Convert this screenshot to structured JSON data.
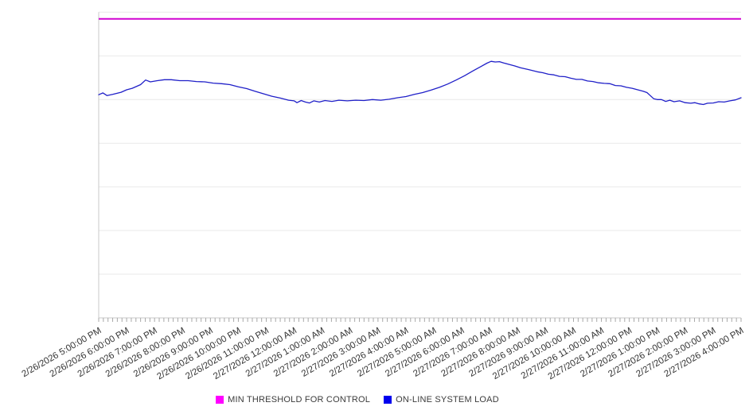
{
  "chart_data": {
    "type": "line",
    "title": "",
    "xlabel": "",
    "ylabel": "",
    "grid": "horizontal-on",
    "legend_position": "bottom-center",
    "y_axis": {
      "tick_labels_visible": false,
      "gridline_rows": 7,
      "range_normalized": [
        0,
        1
      ]
    },
    "x_axis": {
      "label_rotation_deg": -30,
      "minor_ticks_per_hour": 6,
      "tick_labels": [
        "2/26/2026 5:00:00 PM",
        "2/26/2026 6:00:00 PM",
        "2/26/2026 7:00:00 PM",
        "2/26/2026 8:00:00 PM",
        "2/26/2026 9:00:00 PM",
        "2/26/2026 10:00:00 PM",
        "2/26/2026 11:00:00 PM",
        "2/27/2026 12:00:00 AM",
        "2/27/2026 1:00:00 AM",
        "2/27/2026 2:00:00 AM",
        "2/27/2026 3:00:00 AM",
        "2/27/2026 4:00:00 AM",
        "2/27/2026 5:00:00 AM",
        "2/27/2026 6:00:00 AM",
        "2/27/2026 7:00:00 AM",
        "2/27/2026 8:00:00 AM",
        "2/27/2026 9:00:00 AM",
        "2/27/2026 10:00:00 AM",
        "2/27/2026 11:00:00 AM",
        "2/27/2026 12:00:00 PM",
        "2/27/2026 1:00:00 PM",
        "2/27/2026 2:00:00 PM",
        "2/27/2026 3:00:00 PM",
        "2/27/2026 4:00:00 PM"
      ]
    },
    "series": [
      {
        "name": "MIN THRESHOLD FOR CONTROL",
        "color": "#ff00ff",
        "line_color": "#d102d1",
        "kind": "constant",
        "value": 0.978
      },
      {
        "name": "ON-LINE SYSTEM LOAD",
        "color": "#0000ee",
        "line_color": "#1f1fc8",
        "kind": "points",
        "x_unit": "hours_after_first_tick",
        "y_unit": "fraction_of_plot_height",
        "points": [
          [
            0,
            0.73
          ],
          [
            0.15,
            0.736
          ],
          [
            0.3,
            0.727
          ],
          [
            0.5,
            0.731
          ],
          [
            0.8,
            0.738
          ],
          [
            1.0,
            0.746
          ],
          [
            1.2,
            0.751
          ],
          [
            1.5,
            0.763
          ],
          [
            1.68,
            0.778
          ],
          [
            1.85,
            0.772
          ],
          [
            2.1,
            0.776
          ],
          [
            2.35,
            0.779
          ],
          [
            2.6,
            0.779
          ],
          [
            2.9,
            0.776
          ],
          [
            3.2,
            0.776
          ],
          [
            3.5,
            0.773
          ],
          [
            3.8,
            0.772
          ],
          [
            4.1,
            0.768
          ],
          [
            4.4,
            0.766
          ],
          [
            4.7,
            0.763
          ],
          [
            5.0,
            0.756
          ],
          [
            5.3,
            0.75
          ],
          [
            5.6,
            0.741
          ],
          [
            5.9,
            0.733
          ],
          [
            6.2,
            0.725
          ],
          [
            6.5,
            0.719
          ],
          [
            6.8,
            0.712
          ],
          [
            7.0,
            0.71
          ],
          [
            7.1,
            0.704
          ],
          [
            7.25,
            0.711
          ],
          [
            7.4,
            0.706
          ],
          [
            7.55,
            0.703
          ],
          [
            7.7,
            0.71
          ],
          [
            7.9,
            0.706
          ],
          [
            8.1,
            0.711
          ],
          [
            8.35,
            0.708
          ],
          [
            8.6,
            0.712
          ],
          [
            8.9,
            0.71
          ],
          [
            9.2,
            0.712
          ],
          [
            9.5,
            0.711
          ],
          [
            9.8,
            0.714
          ],
          [
            10.1,
            0.712
          ],
          [
            10.4,
            0.715
          ],
          [
            10.7,
            0.72
          ],
          [
            11.0,
            0.724
          ],
          [
            11.3,
            0.731
          ],
          [
            11.6,
            0.737
          ],
          [
            11.9,
            0.745
          ],
          [
            12.2,
            0.754
          ],
          [
            12.5,
            0.765
          ],
          [
            12.8,
            0.778
          ],
          [
            13.1,
            0.792
          ],
          [
            13.4,
            0.808
          ],
          [
            13.7,
            0.823
          ],
          [
            13.9,
            0.833
          ],
          [
            14.05,
            0.839
          ],
          [
            14.2,
            0.837
          ],
          [
            14.35,
            0.838
          ],
          [
            14.5,
            0.834
          ],
          [
            14.7,
            0.829
          ],
          [
            14.9,
            0.824
          ],
          [
            15.1,
            0.818
          ],
          [
            15.4,
            0.812
          ],
          [
            15.7,
            0.805
          ],
          [
            15.9,
            0.802
          ],
          [
            16.1,
            0.797
          ],
          [
            16.3,
            0.795
          ],
          [
            16.5,
            0.79
          ],
          [
            16.7,
            0.789
          ],
          [
            16.9,
            0.784
          ],
          [
            17.1,
            0.78
          ],
          [
            17.3,
            0.78
          ],
          [
            17.5,
            0.775
          ],
          [
            17.7,
            0.773
          ],
          [
            17.9,
            0.769
          ],
          [
            18.1,
            0.767
          ],
          [
            18.3,
            0.766
          ],
          [
            18.5,
            0.76
          ],
          [
            18.7,
            0.759
          ],
          [
            18.9,
            0.754
          ],
          [
            19.1,
            0.751
          ],
          [
            19.3,
            0.746
          ],
          [
            19.5,
            0.741
          ],
          [
            19.63,
            0.737
          ],
          [
            19.75,
            0.727
          ],
          [
            19.87,
            0.717
          ],
          [
            20.0,
            0.714
          ],
          [
            20.15,
            0.714
          ],
          [
            20.3,
            0.708
          ],
          [
            20.45,
            0.712
          ],
          [
            20.6,
            0.707
          ],
          [
            20.8,
            0.71
          ],
          [
            21.0,
            0.704
          ],
          [
            21.2,
            0.702
          ],
          [
            21.35,
            0.704
          ],
          [
            21.5,
            0.7
          ],
          [
            21.65,
            0.698
          ],
          [
            21.8,
            0.702
          ],
          [
            22.0,
            0.703
          ],
          [
            22.2,
            0.707
          ],
          [
            22.4,
            0.706
          ],
          [
            22.6,
            0.71
          ],
          [
            22.8,
            0.713
          ],
          [
            23.0,
            0.72
          ]
        ]
      }
    ],
    "colors": {
      "gridline": "#e9e9e9",
      "axis": "#c9c9c9",
      "minor_tick": "#a8a8a8",
      "axis_label_text": "#333333",
      "legend_text": "#3b3b3b"
    }
  },
  "legend": {
    "items": [
      {
        "label": "MIN THRESHOLD FOR CONTROL",
        "swatch_color": "#ff00ff"
      },
      {
        "label": "ON-LINE SYSTEM LOAD",
        "swatch_color": "#0000ee"
      }
    ]
  }
}
